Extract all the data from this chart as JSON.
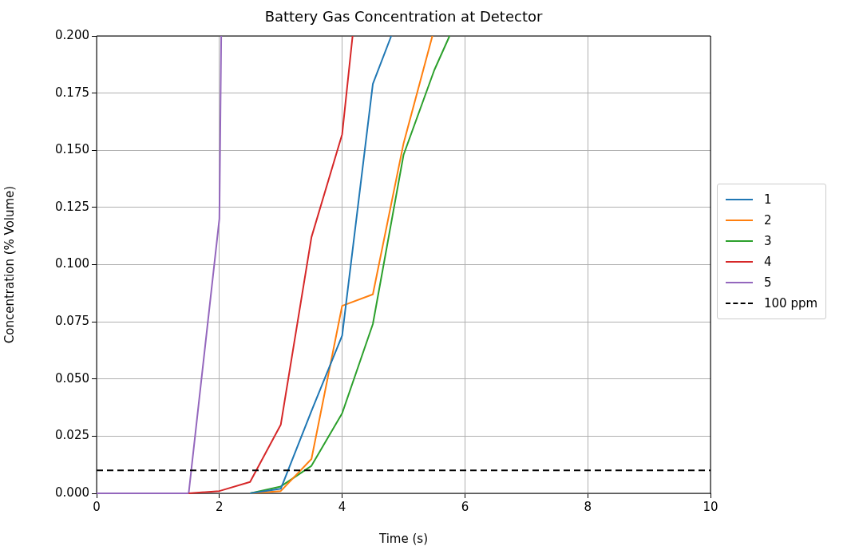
{
  "chart_data": {
    "type": "line",
    "title": "Battery Gas Concentration at Detector",
    "xlabel": "Time (s)",
    "ylabel": "Concentration (% Volume)",
    "xlim": [
      0,
      10
    ],
    "xticks": [
      0,
      2,
      4,
      6,
      8,
      10
    ],
    "ylim": [
      0,
      0.2
    ],
    "yticks": [
      {
        "value": 0,
        "label": "0.000"
      },
      {
        "value": 0.025,
        "label": "0.025"
      },
      {
        "value": 0.05,
        "label": "0.050"
      },
      {
        "value": 0.075,
        "label": "0.075"
      },
      {
        "value": 0.1,
        "label": "0.100"
      },
      {
        "value": 0.125,
        "label": "0.125"
      },
      {
        "value": 0.15,
        "label": "0.150"
      },
      {
        "value": 0.175,
        "label": "0.175"
      },
      {
        "value": 0.2,
        "label": "0.200"
      }
    ],
    "grid": true,
    "legend": "right",
    "marker": "none",
    "line_style": "solid",
    "series": [
      {
        "name": "1",
        "color": "#1f77b4",
        "x": [
          2.5,
          3,
          3.5,
          4,
          4.5,
          4.8
        ],
        "values": [
          0,
          0.002,
          0.036,
          0.069,
          0.179,
          0.2
        ]
      },
      {
        "name": "2",
        "color": "#ff7f0e",
        "x": [
          2.5,
          3,
          3.5,
          4,
          4.5,
          5,
          5.47
        ],
        "values": [
          0,
          0.001,
          0.015,
          0.082,
          0.087,
          0.153,
          0.2
        ]
      },
      {
        "name": "3",
        "color": "#2ca02c",
        "x": [
          2.5,
          3,
          3.5,
          4,
          4.5,
          5,
          5.5,
          5.75
        ],
        "values": [
          0,
          0.003,
          0.012,
          0.035,
          0.074,
          0.148,
          0.185,
          0.2
        ]
      },
      {
        "name": "4",
        "color": "#d62728",
        "x": [
          1.5,
          2,
          2.5,
          3,
          3.5,
          4,
          4.17
        ],
        "values": [
          0,
          0.001,
          0.005,
          0.03,
          0.112,
          0.157,
          0.2
        ]
      },
      {
        "name": "5",
        "color": "#9467bd",
        "x": [
          0,
          0.5,
          1,
          1.5,
          2,
          2.03
        ],
        "values": [
          0,
          0,
          0,
          0,
          0.12,
          0.2
        ]
      }
    ],
    "ref_lines": [
      {
        "axis": "y",
        "value": 0.01,
        "label": "100 ppm",
        "color": "#000000",
        "line_style": "dashed"
      }
    ]
  }
}
